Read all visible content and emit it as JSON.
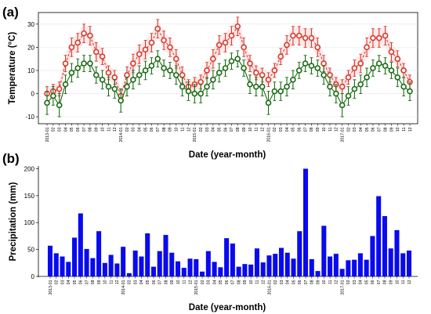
{
  "figure": {
    "panel_a_letter": "(a)",
    "panel_b_letter": "(b)"
  },
  "chart_data": [
    {
      "type": "line",
      "panel": "(a)",
      "xlabel": "Date (year-month)",
      "ylabel": "Temperature (°C)",
      "ylim": [
        -13,
        35
      ],
      "yticks": [
        -10,
        0,
        10,
        20,
        30
      ],
      "x": [
        "2013-01",
        "02",
        "03",
        "04",
        "05",
        "06",
        "07",
        "08",
        "09",
        "10",
        "11",
        "12",
        "2014-01",
        "02",
        "03",
        "04",
        "05",
        "06",
        "07",
        "08",
        "09",
        "10",
        "11",
        "12",
        "2015-01",
        "02",
        "03",
        "04",
        "05",
        "06",
        "07",
        "08",
        "09",
        "10",
        "11",
        "12",
        "2016-01",
        "02",
        "03",
        "04",
        "05",
        "06",
        "07",
        "08",
        "09",
        "10",
        "11",
        "12",
        "2017-01",
        "02",
        "03",
        "04",
        "05",
        "06",
        "07",
        "08",
        "09",
        "10",
        "11",
        "12"
      ],
      "series": [
        {
          "color": "#d93a2a",
          "line_style": "dashed",
          "marker": "open-circle",
          "values": [
            0,
            1,
            2,
            13,
            20,
            22,
            26,
            25,
            18,
            16,
            9,
            7,
            -1,
            8,
            13,
            17,
            19,
            22,
            28,
            23,
            20,
            15,
            8,
            3,
            4,
            5,
            10,
            15,
            21,
            22,
            25,
            29,
            20,
            13,
            9,
            8,
            6,
            10,
            16,
            21,
            25,
            25,
            24,
            24,
            20,
            13,
            8,
            4,
            3,
            7,
            11,
            13,
            20,
            24,
            24,
            25,
            18,
            15,
            10,
            5
          ],
          "errors": [
            3,
            3,
            3,
            3.5,
            4,
            4,
            4,
            4,
            4,
            3.5,
            3,
            3,
            3,
            3.5,
            4,
            4,
            4,
            4,
            4,
            4,
            4,
            4,
            3.5,
            3,
            3,
            3,
            3.5,
            4,
            4,
            4,
            4,
            4,
            4,
            3.5,
            3,
            3,
            3,
            3,
            3.5,
            4,
            4,
            4,
            4,
            4,
            4,
            3.5,
            3,
            3,
            3,
            3,
            3.5,
            4,
            4,
            4,
            4,
            4,
            4,
            3.5,
            3,
            3
          ]
        },
        {
          "color": "#1a6b14",
          "line_style": "solid",
          "marker": "open-circle",
          "values": [
            -4,
            -1,
            -5,
            4,
            9,
            11,
            13,
            13,
            8,
            6,
            3,
            2,
            -3,
            3,
            6,
            8,
            10,
            12,
            15,
            11,
            10,
            8,
            3,
            1,
            0,
            0,
            3,
            6,
            9,
            11,
            14,
            15,
            11,
            4,
            3,
            3,
            -4,
            1,
            1,
            3,
            6,
            10,
            13,
            12,
            11,
            8,
            3,
            0,
            -5,
            -1,
            2,
            4,
            7,
            11,
            13,
            12,
            10,
            7,
            3,
            1
          ],
          "errors": [
            5,
            4,
            5,
            4,
            4,
            4,
            3.5,
            3.5,
            3.5,
            4,
            4,
            4,
            5,
            4,
            4,
            4,
            4,
            3.5,
            3.5,
            3.5,
            3.5,
            4,
            4,
            4,
            4,
            4,
            4,
            4,
            4,
            3.5,
            3.5,
            3.5,
            3.5,
            4,
            4,
            4,
            5,
            4,
            4,
            4,
            4,
            3.5,
            3.5,
            3.5,
            3.5,
            4,
            4,
            4,
            5,
            4,
            4,
            4,
            4,
            3.5,
            3.5,
            3.5,
            3.5,
            4,
            4,
            4
          ]
        }
      ]
    },
    {
      "type": "bar",
      "panel": "(b)",
      "xlabel": "Date (year-month)",
      "ylabel": "Precipitation (mm)",
      "ylim": [
        0,
        205
      ],
      "yticks": [
        0,
        50,
        100,
        150,
        200
      ],
      "color": "#0a0aee",
      "categories": [
        "2013-01",
        "02",
        "03",
        "04",
        "05",
        "06",
        "07",
        "08",
        "09",
        "10",
        "11",
        "12",
        "2014-01",
        "02",
        "03",
        "04",
        "05",
        "06",
        "07",
        "08",
        "09",
        "10",
        "11",
        "12",
        "2015-01",
        "02",
        "03",
        "04",
        "05",
        "06",
        "07",
        "08",
        "09",
        "10",
        "11",
        "12",
        "2016-01",
        "02",
        "03",
        "04",
        "05",
        "06",
        "07",
        "08",
        "09",
        "10",
        "11",
        "12",
        "2017-01",
        "02",
        "03",
        "04",
        "05",
        "06",
        "07",
        "08",
        "09",
        "10",
        "11",
        "12"
      ],
      "values": [
        57,
        43,
        37,
        27,
        72,
        117,
        51,
        34,
        84,
        25,
        40,
        24,
        55,
        6,
        48,
        37,
        80,
        18,
        47,
        77,
        44,
        28,
        16,
        33,
        32,
        9,
        47,
        27,
        17,
        71,
        61,
        18,
        23,
        22,
        52,
        26,
        39,
        42,
        53,
        44,
        33,
        84,
        200,
        32,
        10,
        94,
        37,
        42,
        14,
        30,
        31,
        43,
        31,
        75,
        149,
        112,
        52,
        86,
        43,
        48
      ]
    }
  ]
}
